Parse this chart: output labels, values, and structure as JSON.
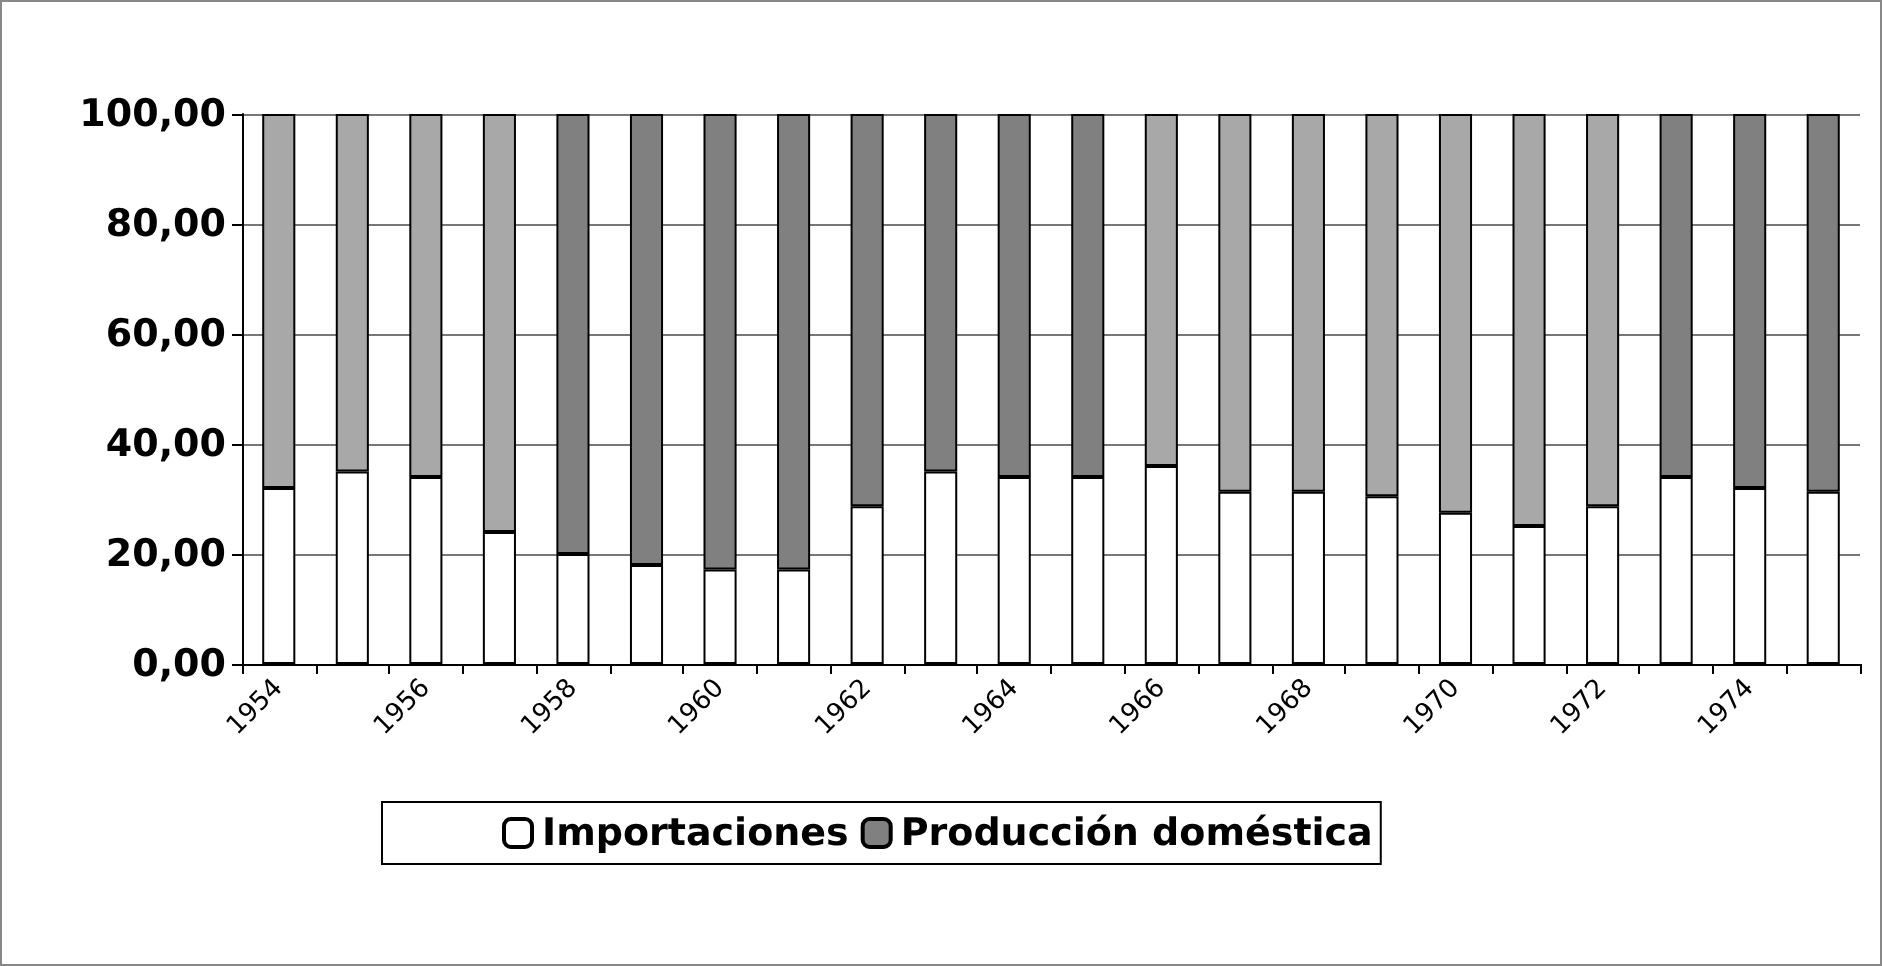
{
  "chart_data": {
    "type": "bar",
    "stacked": true,
    "categories": [
      "1954",
      null,
      "1956",
      null,
      "1958",
      null,
      "1960",
      null,
      "1962",
      null,
      "1964",
      null,
      "1966",
      null,
      "1968",
      null,
      "1970",
      null,
      "1972",
      null,
      "1974",
      null
    ],
    "series": [
      {
        "name": "Importaciones",
        "color": "#ffffff",
        "values": [
          32,
          35,
          34,
          24,
          20,
          18,
          17.2,
          17.2,
          28.7,
          35,
          34,
          34,
          36,
          31.3,
          31.3,
          30.5,
          27.5,
          25.1,
          28.7,
          34,
          32,
          31.3
        ]
      },
      {
        "name": "Producción doméstica",
        "color": "#808080",
        "colors": [
          "#a8a8a8",
          "#a8a8a8",
          "#a8a8a8",
          "#a8a8a8",
          "#808080",
          "#808080",
          "#808080",
          "#808080",
          "#808080",
          "#808080",
          "#808080",
          "#808080",
          "#a8a8a8",
          "#a8a8a8",
          "#a8a8a8",
          "#a8a8a8",
          "#a8a8a8",
          "#a8a8a8",
          "#a8a8a8",
          "#808080",
          "#808080",
          "#808080"
        ],
        "values": [
          68,
          65,
          66,
          76,
          80,
          82,
          82.8,
          82.8,
          71.3,
          65,
          66,
          66,
          64,
          68.7,
          68.7,
          69.5,
          72.5,
          74.9,
          71.3,
          66,
          68,
          68.7
        ]
      }
    ],
    "ylim": [
      0,
      100
    ],
    "yticks": [
      {
        "value": 0,
        "label": "0,00"
      },
      {
        "value": 20,
        "label": "20,00"
      },
      {
        "value": 40,
        "label": "40,00"
      },
      {
        "value": 60,
        "label": "60,00"
      },
      {
        "value": 80,
        "label": "80,00"
      },
      {
        "value": 100,
        "label": "100,00"
      }
    ],
    "grid": "y",
    "legend": "bottom"
  }
}
